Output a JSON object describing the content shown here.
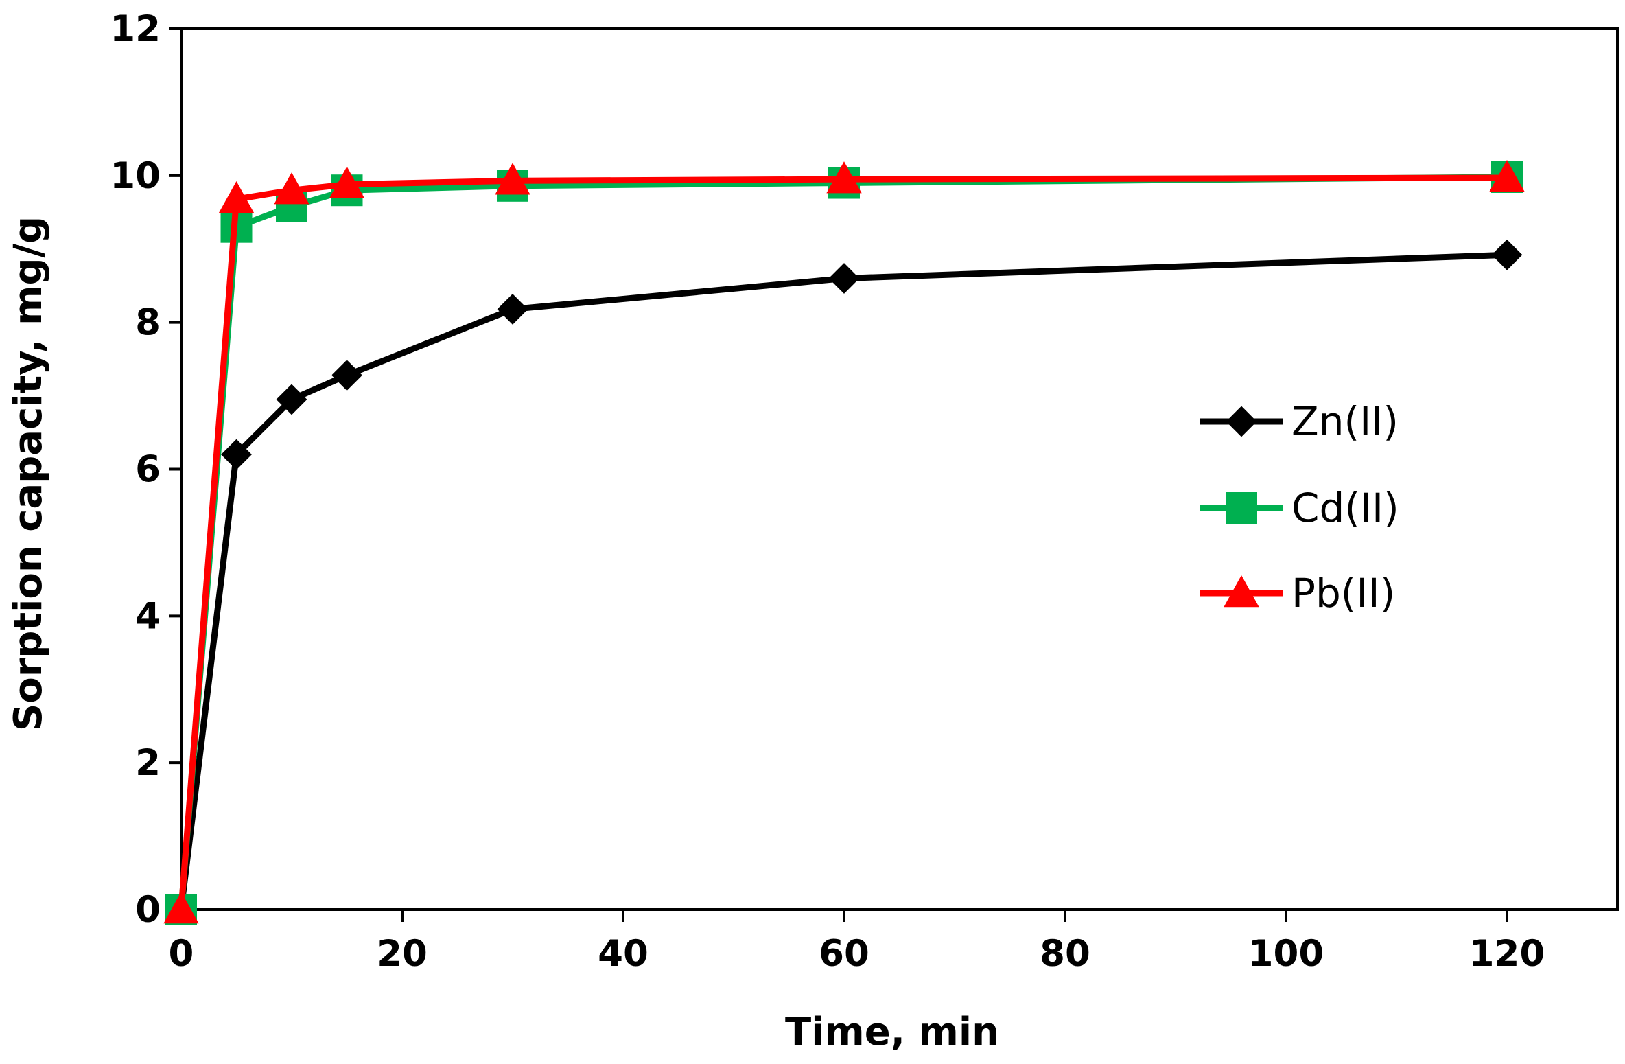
{
  "chart_data": {
    "type": "line",
    "title": "",
    "xlabel": "Time, min",
    "ylabel": "Sorption capacity, mg/g",
    "xlim": [
      0,
      130
    ],
    "ylim": [
      0,
      12
    ],
    "xticks": [
      0,
      20,
      40,
      60,
      80,
      100,
      120
    ],
    "yticks": [
      0,
      2,
      4,
      6,
      8,
      10,
      12
    ],
    "grid": false,
    "legend_position": "center-right",
    "x": [
      0,
      5,
      10,
      15,
      30,
      60,
      120
    ],
    "series": [
      {
        "name": "Zn(II)",
        "color": "#000000",
        "marker": "diamond",
        "values": [
          0,
          6.2,
          6.95,
          7.28,
          8.18,
          8.6,
          8.92
        ]
      },
      {
        "name": "Cd(II)",
        "color": "#00b050",
        "marker": "square",
        "values": [
          0,
          9.3,
          9.58,
          9.8,
          9.86,
          9.9,
          9.98
        ]
      },
      {
        "name": "Pb(II)",
        "color": "#ff0000",
        "marker": "triangle",
        "values": [
          0,
          9.68,
          9.8,
          9.88,
          9.93,
          9.95,
          9.97
        ]
      }
    ]
  }
}
